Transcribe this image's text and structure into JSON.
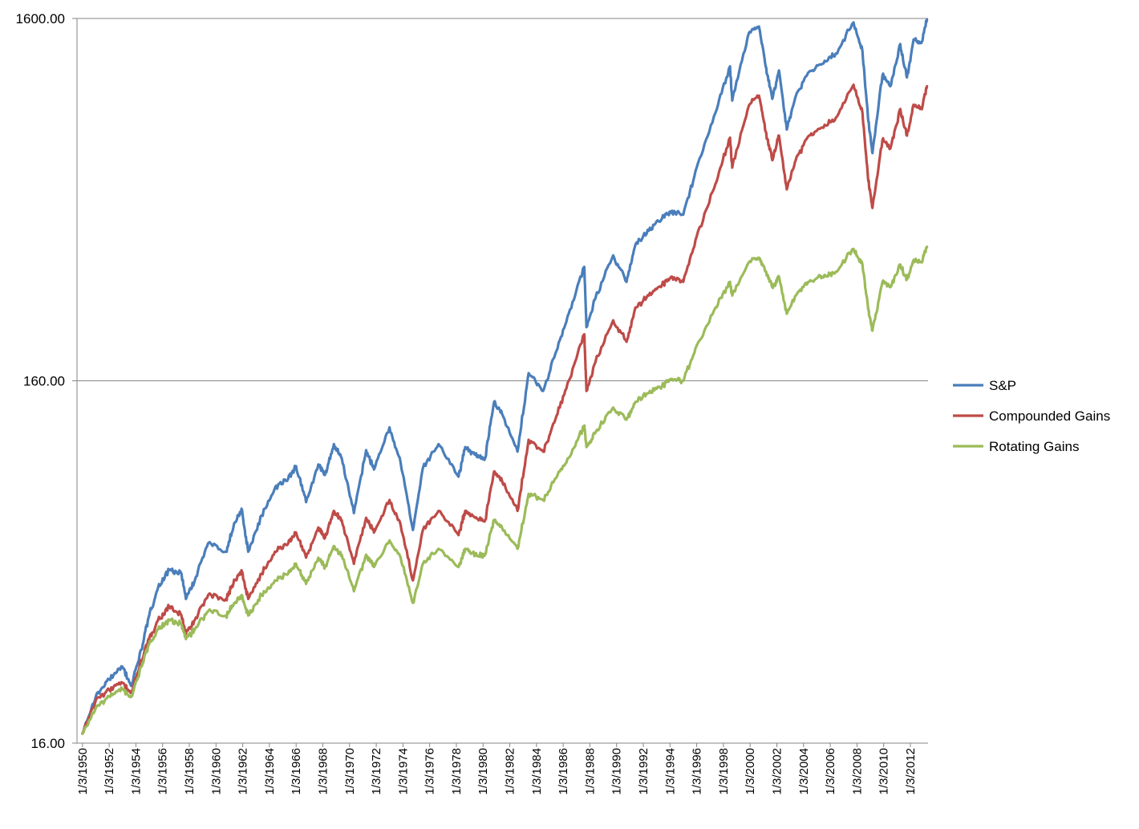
{
  "chart_data": {
    "type": "line",
    "title": "",
    "xlabel": "",
    "ylabel": "",
    "y_scale": "log",
    "ylim": [
      16,
      1600
    ],
    "x_range": [
      "1950-01-03",
      "2013-04-30"
    ],
    "y_ticks": [
      {
        "value": 16,
        "label": "16.00"
      },
      {
        "value": 160,
        "label": "160.00"
      },
      {
        "value": 1600,
        "label": "1600.00"
      }
    ],
    "x_tick_labels": [
      "1/3/1950",
      "1/3/1952",
      "1/3/1954",
      "1/3/1956",
      "1/3/1958",
      "1/3/1960",
      "1/3/1962",
      "1/3/1964",
      "1/3/1966",
      "1/3/1968",
      "1/3/1970",
      "1/3/1972",
      "1/3/1974",
      "1/3/1976",
      "1/3/1978",
      "1/3/1980",
      "1/3/1982",
      "1/3/1984",
      "1/3/1986",
      "1/3/1988",
      "1/3/1990",
      "1/3/1992",
      "1/3/1994",
      "1/3/1996",
      "1/3/1998",
      "1/3/2000",
      "1/3/2002",
      "1/3/2004",
      "1/3/2006",
      "1/3/2008",
      "1/3/2010",
      "1/3/2012"
    ],
    "x_tick_dates": [
      "1950-01-03",
      "1952-01-03",
      "1954-01-03",
      "1956-01-03",
      "1958-01-03",
      "1960-01-03",
      "1962-01-03",
      "1964-01-03",
      "1966-01-03",
      "1968-01-03",
      "1970-01-03",
      "1972-01-03",
      "1974-01-03",
      "1976-01-03",
      "1978-01-03",
      "1980-01-03",
      "1982-01-03",
      "1984-01-03",
      "1986-01-03",
      "1988-01-03",
      "1990-01-03",
      "1992-01-03",
      "1994-01-03",
      "1996-01-03",
      "1998-01-03",
      "2000-01-03",
      "2002-01-03",
      "2004-01-03",
      "2006-01-03",
      "2008-01-03",
      "2010-01-03",
      "2012-01-03"
    ],
    "grid": {
      "horizontal": true,
      "vertical": false
    },
    "legend": {
      "position": "right"
    },
    "series": [
      {
        "name": "S&P",
        "color": "#4a7ebb",
        "points": [
          [
            "1950-01",
            "17"
          ],
          [
            "1951-01",
            "21.5"
          ],
          [
            "1952-01",
            "24"
          ],
          [
            "1953-01",
            "26"
          ],
          [
            "1953-09",
            "23"
          ],
          [
            "1954-06",
            "29"
          ],
          [
            "1955-01",
            "36"
          ],
          [
            "1955-09",
            "43"
          ],
          [
            "1956-07",
            "48"
          ],
          [
            "1957-06",
            "47"
          ],
          [
            "1957-10",
            "40"
          ],
          [
            "1958-06",
            "45"
          ],
          [
            "1959-06",
            "57"
          ],
          [
            "1960-10",
            "54"
          ],
          [
            "1961-06",
            "65"
          ],
          [
            "1961-12",
            "71"
          ],
          [
            "1962-06",
            "54"
          ],
          [
            "1963-06",
            "68"
          ],
          [
            "1964-06",
            "81"
          ],
          [
            "1965-06",
            "86"
          ],
          [
            "1966-01",
            "93"
          ],
          [
            "1966-10",
            "74"
          ],
          [
            "1967-09",
            "94"
          ],
          [
            "1968-03",
            "88"
          ],
          [
            "1968-11",
            "107"
          ],
          [
            "1969-06",
            "98"
          ],
          [
            "1970-05",
            "69"
          ],
          [
            "1971-04",
            "103"
          ],
          [
            "1971-11",
            "91"
          ],
          [
            "1973-01",
            "119"
          ],
          [
            "1973-11",
            "95"
          ],
          [
            "1974-10",
            "62"
          ],
          [
            "1975-07",
            "92"
          ],
          [
            "1976-09",
            "107"
          ],
          [
            "1978-03",
            "87"
          ],
          [
            "1978-09",
            "105"
          ],
          [
            "1979-06",
            "100"
          ],
          [
            "1980-03",
            "98"
          ],
          [
            "1980-11",
            "140"
          ],
          [
            "1981-06",
            "130"
          ],
          [
            "1982-08",
            "102"
          ],
          [
            "1983-06",
            "168"
          ],
          [
            "1984-07",
            "150"
          ],
          [
            "1985-06",
            "190"
          ],
          [
            "1986-06",
            "245"
          ],
          [
            "1987-08",
            "330"
          ],
          [
            "1987-10",
            "225"
          ],
          [
            "1988-06",
            "270"
          ],
          [
            "1989-10",
            "355"
          ],
          [
            "1990-10",
            "300"
          ],
          [
            "1991-06",
            "380"
          ],
          [
            "1992-06",
            "415"
          ],
          [
            "1993-06",
            "450"
          ],
          [
            "1994-02",
            "470"
          ],
          [
            "1995-01",
            "460"
          ],
          [
            "1996-01",
            "620"
          ],
          [
            "1997-06",
            "880"
          ],
          [
            "1998-07",
            "1180"
          ],
          [
            "1998-09",
            "950"
          ],
          [
            "1999-12",
            "1460"
          ],
          [
            "2000-09",
            "1520"
          ],
          [
            "2001-03",
            "1180"
          ],
          [
            "2001-09",
            "960"
          ],
          [
            "2002-03",
            "1150"
          ],
          [
            "2002-10",
            "790"
          ],
          [
            "2003-06",
            "975"
          ],
          [
            "2004-06",
            "1140"
          ],
          [
            "2005-06",
            "1200"
          ],
          [
            "2006-06",
            "1280"
          ],
          [
            "2007-10",
            "1560"
          ],
          [
            "2008-06",
            "1300"
          ],
          [
            "2008-11",
            "850"
          ],
          [
            "2009-03",
            "680"
          ],
          [
            "2009-12",
            "1115"
          ],
          [
            "2010-07",
            "1040"
          ],
          [
            "2011-04",
            "1360"
          ],
          [
            "2011-10",
            "1100"
          ],
          [
            "2012-04",
            "1400"
          ],
          [
            "2012-11",
            "1370"
          ],
          [
            "2013-04",
            "1590"
          ]
        ]
      },
      {
        "name": "Compounded Gains",
        "color": "#be4b48",
        "points": [
          [
            "1950-01",
            "17"
          ],
          [
            "1951-01",
            "21"
          ],
          [
            "1952-01",
            "22.5"
          ],
          [
            "1953-01",
            "23.5"
          ],
          [
            "1953-09",
            "22"
          ],
          [
            "1954-06",
            "27"
          ],
          [
            "1955-01",
            "31"
          ],
          [
            "1955-09",
            "35"
          ],
          [
            "1956-07",
            "38"
          ],
          [
            "1957-06",
            "36"
          ],
          [
            "1957-10",
            "32"
          ],
          [
            "1958-06",
            "35"
          ],
          [
            "1959-06",
            "41"
          ],
          [
            "1960-10",
            "40"
          ],
          [
            "1961-06",
            "45"
          ],
          [
            "1961-12",
            "48"
          ],
          [
            "1962-06",
            "40"
          ],
          [
            "1963-06",
            "47"
          ],
          [
            "1964-06",
            "54"
          ],
          [
            "1965-06",
            "57"
          ],
          [
            "1966-01",
            "61"
          ],
          [
            "1966-10",
            "52"
          ],
          [
            "1967-09",
            "63"
          ],
          [
            "1968-03",
            "59"
          ],
          [
            "1968-11",
            "70"
          ],
          [
            "1969-06",
            "66"
          ],
          [
            "1970-05",
            "50"
          ],
          [
            "1971-04",
            "67"
          ],
          [
            "1971-11",
            "61"
          ],
          [
            "1973-01",
            "75"
          ],
          [
            "1973-11",
            "64"
          ],
          [
            "1974-10",
            "45"
          ],
          [
            "1975-07",
            "62"
          ],
          [
            "1976-09",
            "70"
          ],
          [
            "1978-03",
            "60"
          ],
          [
            "1978-09",
            "70"
          ],
          [
            "1979-06",
            "67"
          ],
          [
            "1980-03",
            "66"
          ],
          [
            "1980-11",
            "90"
          ],
          [
            "1981-06",
            "85"
          ],
          [
            "1982-08",
            "70"
          ],
          [
            "1983-06",
            "110"
          ],
          [
            "1984-07",
            "102"
          ],
          [
            "1985-06",
            "125"
          ],
          [
            "1986-06",
            "160"
          ],
          [
            "1987-08",
            "215"
          ],
          [
            "1987-10",
            "150"
          ],
          [
            "1988-06",
            "180"
          ],
          [
            "1989-10",
            "235"
          ],
          [
            "1990-10",
            "205"
          ],
          [
            "1991-06",
            "255"
          ],
          [
            "1992-06",
            "275"
          ],
          [
            "1993-06",
            "295"
          ],
          [
            "1994-02",
            "310"
          ],
          [
            "1995-01",
            "300"
          ],
          [
            "1996-01",
            "400"
          ],
          [
            "1997-06",
            "560"
          ],
          [
            "1998-07",
            "750"
          ],
          [
            "1998-09",
            "620"
          ],
          [
            "1999-12",
            "920"
          ],
          [
            "2000-09",
            "980"
          ],
          [
            "2001-03",
            "780"
          ],
          [
            "2001-09",
            "650"
          ],
          [
            "2002-03",
            "760"
          ],
          [
            "2002-10",
            "540"
          ],
          [
            "2003-06",
            "650"
          ],
          [
            "2004-06",
            "760"
          ],
          [
            "2005-06",
            "800"
          ],
          [
            "2006-06",
            "850"
          ],
          [
            "2007-10",
            "1050"
          ],
          [
            "2008-06",
            "880"
          ],
          [
            "2008-11",
            "580"
          ],
          [
            "2009-03",
            "480"
          ],
          [
            "2009-12",
            "740"
          ],
          [
            "2010-07",
            "700"
          ],
          [
            "2011-04",
            "900"
          ],
          [
            "2011-10",
            "760"
          ],
          [
            "2012-04",
            "925"
          ],
          [
            "2012-11",
            "900"
          ],
          [
            "2013-04",
            "1040"
          ]
        ]
      },
      {
        "name": "Rotating Gains",
        "color": "#9bbb59",
        "points": [
          [
            "1950-01",
            "17"
          ],
          [
            "1951-01",
            "20"
          ],
          [
            "1952-01",
            "21.5"
          ],
          [
            "1953-01",
            "22.5"
          ],
          [
            "1953-09",
            "21.5"
          ],
          [
            "1954-06",
            "26"
          ],
          [
            "1955-01",
            "30"
          ],
          [
            "1955-09",
            "33"
          ],
          [
            "1956-07",
            "35"
          ],
          [
            "1957-06",
            "34"
          ],
          [
            "1957-10",
            "31"
          ],
          [
            "1958-06",
            "33"
          ],
          [
            "1959-06",
            "37"
          ],
          [
            "1960-10",
            "36"
          ],
          [
            "1961-06",
            "39"
          ],
          [
            "1961-12",
            "41"
          ],
          [
            "1962-06",
            "36"
          ],
          [
            "1963-06",
            "41"
          ],
          [
            "1964-06",
            "45"
          ],
          [
            "1965-06",
            "47"
          ],
          [
            "1966-01",
            "50"
          ],
          [
            "1966-10",
            "44"
          ],
          [
            "1967-09",
            "52"
          ],
          [
            "1968-03",
            "49"
          ],
          [
            "1968-11",
            "56"
          ],
          [
            "1969-06",
            "53"
          ],
          [
            "1970-05",
            "42"
          ],
          [
            "1971-04",
            "53"
          ],
          [
            "1971-11",
            "49"
          ],
          [
            "1973-01",
            "58"
          ],
          [
            "1973-11",
            "52"
          ],
          [
            "1974-10",
            "39"
          ],
          [
            "1975-07",
            "50"
          ],
          [
            "1976-09",
            "55"
          ],
          [
            "1978-03",
            "49"
          ],
          [
            "1978-09",
            "55"
          ],
          [
            "1979-06",
            "53"
          ],
          [
            "1980-03",
            "53"
          ],
          [
            "1980-11",
            "66"
          ],
          [
            "1981-06",
            "63"
          ],
          [
            "1982-08",
            "55"
          ],
          [
            "1983-06",
            "78"
          ],
          [
            "1984-07",
            "75"
          ],
          [
            "1985-06",
            "86"
          ],
          [
            "1986-06",
            "98"
          ],
          [
            "1987-08",
            "120"
          ],
          [
            "1987-10",
            "105"
          ],
          [
            "1988-06",
            "115"
          ],
          [
            "1989-10",
            "135"
          ],
          [
            "1990-10",
            "125"
          ],
          [
            "1991-06",
            "140"
          ],
          [
            "1992-06",
            "148"
          ],
          [
            "1993-06",
            "155"
          ],
          [
            "1994-02",
            "162"
          ],
          [
            "1995-01",
            "160"
          ],
          [
            "1996-01",
            "200"
          ],
          [
            "1997-06",
            "255"
          ],
          [
            "1998-07",
            "300"
          ],
          [
            "1998-09",
            "275"
          ],
          [
            "1999-12",
            "340"
          ],
          [
            "2000-09",
            "350"
          ],
          [
            "2001-03",
            "320"
          ],
          [
            "2001-09",
            "290"
          ],
          [
            "2002-03",
            "310"
          ],
          [
            "2002-10",
            "245"
          ],
          [
            "2003-06",
            "275"
          ],
          [
            "2004-06",
            "300"
          ],
          [
            "2005-06",
            "310"
          ],
          [
            "2006-06",
            "320"
          ],
          [
            "2007-10",
            "370"
          ],
          [
            "2008-06",
            "335"
          ],
          [
            "2008-11",
            "255"
          ],
          [
            "2009-03",
            "220"
          ],
          [
            "2009-12",
            "300"
          ],
          [
            "2010-07",
            "290"
          ],
          [
            "2011-04",
            "335"
          ],
          [
            "2011-10",
            "305"
          ],
          [
            "2012-04",
            "345"
          ],
          [
            "2012-11",
            "340"
          ],
          [
            "2013-04",
            "375"
          ]
        ]
      }
    ]
  }
}
